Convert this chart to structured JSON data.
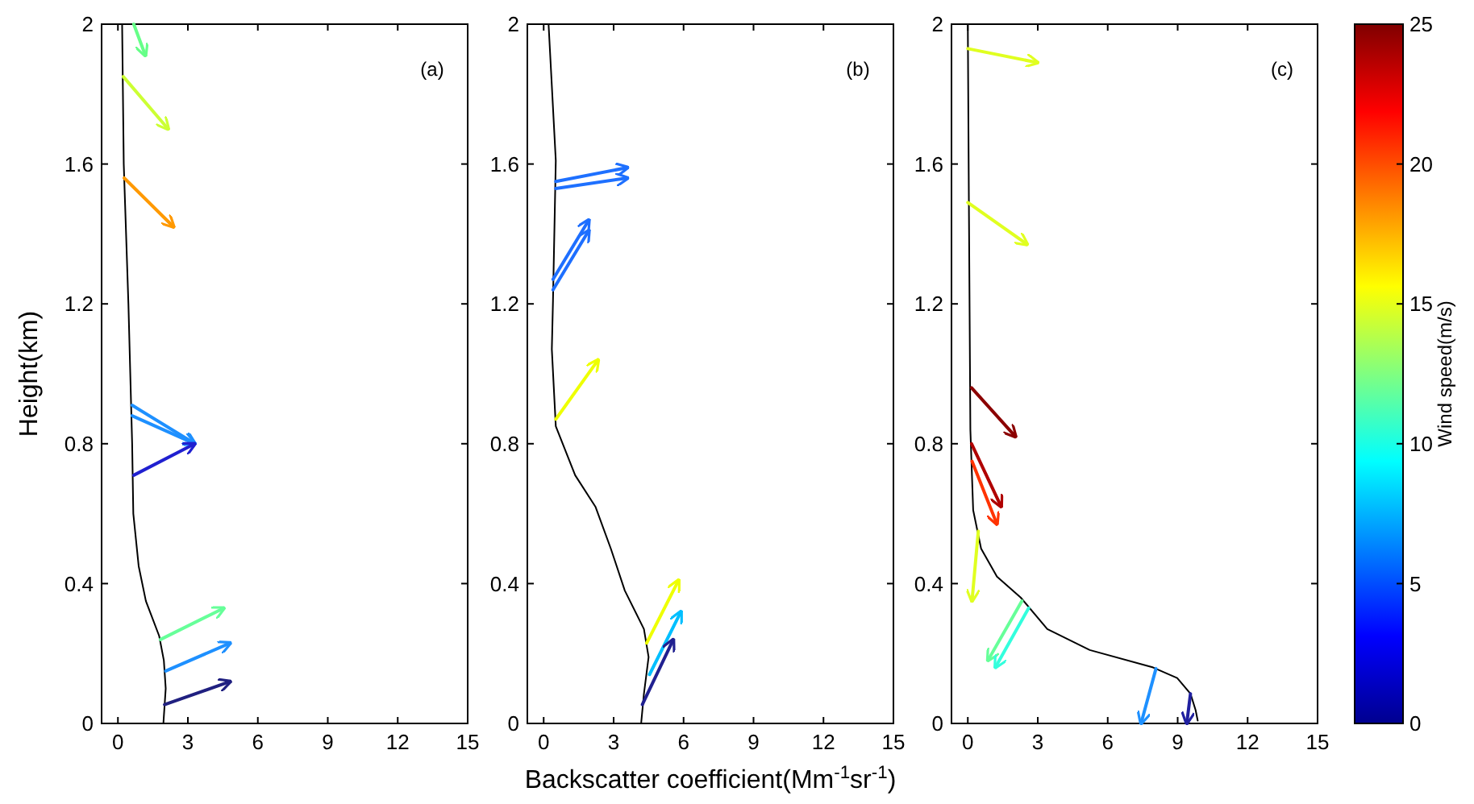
{
  "chart_data": [
    {
      "type": "line",
      "ylabel": "Height(km)",
      "annotations": [
        "(a)"
      ],
      "xlim": [
        -0.7,
        15
      ],
      "xticks": [
        0,
        3,
        6,
        9,
        12,
        15
      ],
      "ylim": [
        0,
        2
      ],
      "yticks": [
        0,
        0.4,
        0.8,
        1.2,
        1.6,
        2
      ],
      "series": [
        {
          "color": "#000000",
          "x": [
            1.95,
            2.05,
            1.97,
            1.77,
            1.2,
            0.89,
            0.66,
            0.61,
            0.45,
            0.25,
            0.18
          ],
          "values": [
            0,
            0.1,
            0.18,
            0.25,
            0.35,
            0.45,
            0.6,
            0.8,
            1.2,
            1.6,
            2
          ]
        },
        {
          "color": "#66ff88",
          "x": [
            0.68,
            1.18
          ],
          "values": [
            2,
            1.91
          ]
        },
        {
          "color": "#ccff33",
          "x": [
            0.23,
            2.16
          ],
          "values": [
            1.85,
            1.7
          ]
        },
        {
          "color": "#ff9900",
          "x": [
            0.27,
            2.39
          ],
          "values": [
            1.56,
            1.42
          ]
        },
        {
          "color": "#1e90ff",
          "x": [
            0.61,
            3.3
          ],
          "values": [
            0.91,
            0.8
          ]
        },
        {
          "color": "#1e90ff",
          "x": [
            0.61,
            3.3
          ],
          "values": [
            0.88,
            0.8
          ]
        },
        {
          "color": "#2020d0",
          "x": [
            0.68,
            3.3
          ],
          "values": [
            0.71,
            0.8
          ]
        },
        {
          "color": "#66ff99",
          "x": [
            1.82,
            4.55
          ],
          "values": [
            0.24,
            0.33
          ]
        },
        {
          "color": "#1e90ff",
          "x": [
            2.05,
            4.82
          ],
          "values": [
            0.15,
            0.23
          ]
        },
        {
          "color": "#202080",
          "x": [
            2,
            4.82
          ],
          "values": [
            0.054,
            0.12
          ]
        }
      ]
    },
    {
      "type": "line",
      "xlabel": "Backscatter coefficient(Mm$^{-1}$sr$^{-1}$)",
      "annotations": [
        "(b)"
      ],
      "xlim": [
        -0.7,
        15
      ],
      "xticks": [
        0,
        3,
        6,
        9,
        12,
        15
      ],
      "ylim": [
        0,
        2
      ],
      "yticks": [
        0,
        0.4,
        0.8,
        1.2,
        1.6,
        2
      ],
      "series": [
        {
          "color": "#000000",
          "x": [
            4.18,
            4.3,
            4.5,
            4.3,
            3.48,
            2.88,
            2.22,
            1.35,
            0.52,
            0.35,
            0.4,
            0.52,
            0.21
          ],
          "values": [
            0,
            0.085,
            0.19,
            0.27,
            0.38,
            0.5,
            0.62,
            0.71,
            0.85,
            1.07,
            1.21,
            1.61,
            2
          ]
        },
        {
          "color": "#1e70ff",
          "x": [
            0.52,
            3.6
          ],
          "values": [
            1.55,
            1.59
          ]
        },
        {
          "color": "#1e70ff",
          "x": [
            0.52,
            3.6
          ],
          "values": [
            1.53,
            1.56
          ]
        },
        {
          "color": "#1e6fff",
          "x": [
            0.4,
            1.94
          ],
          "values": [
            1.27,
            1.44
          ]
        },
        {
          "color": "#1e6fff",
          "x": [
            0.4,
            1.94
          ],
          "values": [
            1.24,
            1.41
          ]
        },
        {
          "color": "#eeff00",
          "x": [
            0.52,
            2.34
          ],
          "values": [
            0.87,
            1.04
          ]
        },
        {
          "color": "#eeff00",
          "x": [
            4.42,
            5.79
          ],
          "values": [
            0.23,
            0.41
          ]
        },
        {
          "color": "#00bfff",
          "x": [
            4.54,
            5.89
          ],
          "values": [
            0.14,
            0.32
          ]
        },
        {
          "color": "#202090",
          "x": [
            4.23,
            5.56
          ],
          "values": [
            0.054,
            0.24
          ]
        }
      ]
    },
    {
      "type": "line",
      "annotations": [
        "(c)"
      ],
      "clabel": "Wind speed(m/s)",
      "clim": [
        0,
        25
      ],
      "cticks": [
        0,
        5,
        10,
        15,
        20,
        25
      ],
      "xlim": [
        -0.7,
        15
      ],
      "xticks": [
        0,
        3,
        6,
        9,
        12,
        15
      ],
      "ylim": [
        0,
        2
      ],
      "yticks": [
        0,
        0.4,
        0.8,
        1.2,
        1.6,
        2
      ],
      "series": [
        {
          "color": "#000000",
          "x": [
            9.86,
            9.77,
            9.55,
            8.98,
            7.95,
            5.23,
            3.41,
            2.27,
            1.25,
            0.57,
            0.23,
            0.11,
            0.05,
            0
          ],
          "values": [
            0.008,
            0.038,
            0.085,
            0.13,
            0.16,
            0.21,
            0.27,
            0.36,
            0.42,
            0.5,
            0.61,
            0.84,
            1.45,
            2
          ]
        },
        {
          "color": "#e0ff20",
          "x": [
            0,
            3
          ],
          "values": [
            1.93,
            1.89
          ]
        },
        {
          "color": "#e0ff20",
          "x": [
            0,
            2.55
          ],
          "values": [
            1.49,
            1.37
          ]
        },
        {
          "color": "#8b0000",
          "x": [
            0.16,
            2.05
          ],
          "values": [
            0.96,
            0.82
          ]
        },
        {
          "color": "#b00000",
          "x": [
            0.16,
            1.43
          ],
          "values": [
            0.8,
            0.62
          ]
        },
        {
          "color": "#ff3300",
          "x": [
            0.18,
            1.25
          ],
          "values": [
            0.75,
            0.57
          ]
        },
        {
          "color": "#e0ff20",
          "x": [
            0.45,
            0.18
          ],
          "values": [
            0.55,
            0.35
          ]
        },
        {
          "color": "#66ff99",
          "x": [
            2.32,
            0.86
          ],
          "values": [
            0.35,
            0.18
          ]
        },
        {
          "color": "#33ffdd",
          "x": [
            2.61,
            1.18
          ],
          "values": [
            0.33,
            0.16
          ]
        },
        {
          "color": "#1e90ff",
          "x": [
            8.07,
            7.43
          ],
          "values": [
            0.157,
            0
          ]
        },
        {
          "color": "#2020a0",
          "x": [
            9.55,
            9.39
          ],
          "values": [
            0.085,
            0
          ]
        }
      ]
    }
  ]
}
